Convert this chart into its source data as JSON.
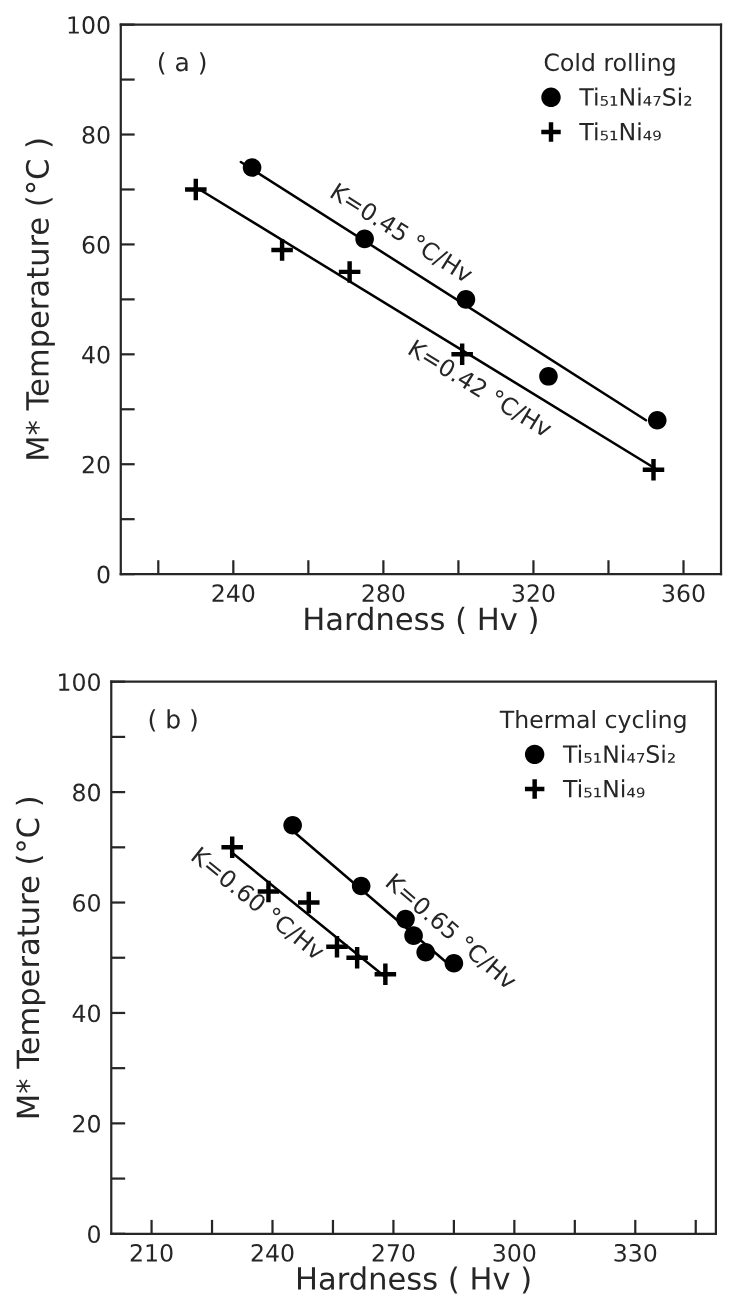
{
  "chart_data": [
    {
      "type": "scatter",
      "xlabel": "Hardness ( Hv )",
      "ylabel": "M* Temperature (°C )",
      "legend_title": "Cold rolling",
      "legend": "top right",
      "grid": false,
      "xlim": [
        210,
        370
      ],
      "ylim": [
        0,
        100
      ],
      "xticks": [
        {
          "value": 220,
          "label": null
        },
        240,
        {
          "value": 260,
          "label": null
        },
        280,
        {
          "value": 300,
          "label": null
        },
        320,
        {
          "value": 340,
          "label": null
        },
        360
      ],
      "yticks": [
        0,
        {
          "value": 10,
          "label": null
        },
        20,
        {
          "value": 30,
          "label": null
        },
        40,
        {
          "value": 50,
          "label": null
        },
        60,
        {
          "value": 70,
          "label": null
        },
        80,
        {
          "value": 90,
          "label": null
        },
        100
      ],
      "series": [
        {
          "name": "Ti₅₁Ni₄₇Si₂",
          "marker": "circle",
          "color": "#000000",
          "x": [
            245,
            275,
            302,
            324,
            353
          ],
          "values": [
            74,
            61,
            50,
            36,
            28
          ]
        },
        {
          "name": "Ti₅₁Ni₄₉",
          "marker": "cross",
          "color": "#000000",
          "x": [
            230,
            253,
            271,
            301,
            352
          ],
          "values": [
            70,
            59,
            55,
            40,
            19
          ]
        },
        {
          "type": "line",
          "line_style": "solid",
          "marker": "none",
          "color": "#000000",
          "x": [
            242,
            350
          ],
          "values": [
            75,
            28
          ]
        },
        {
          "type": "line",
          "line_style": "solid",
          "marker": "none",
          "color": "#000000",
          "x": [
            231,
            353
          ],
          "values": [
            70,
            19
          ]
        }
      ],
      "annotations": [
        "( a )",
        {
          "text": "K=0.45 °C/Hv",
          "x": 281,
          "y": 58
        },
        {
          "text": "K=0.42 °C/Hv",
          "x": 309,
          "y": 37.4
        }
      ]
    },
    {
      "type": "scatter",
      "xlabel": "Hardness ( Hv )",
      "ylabel": "M* Temperature (°C )",
      "legend_title": "Thermal cycling",
      "legend": "top right",
      "grid": false,
      "xlim": [
        200,
        350
      ],
      "ylim": [
        0,
        100
      ],
      "xticks": [
        210,
        {
          "value": 225,
          "label": null
        },
        240,
        {
          "value": 255,
          "label": null
        },
        270,
        {
          "value": 285,
          "label": null
        },
        300,
        {
          "value": 315,
          "label": null
        },
        330,
        {
          "value": 345,
          "label": null
        }
      ],
      "yticks": [
        0,
        {
          "value": 10,
          "label": null
        },
        20,
        {
          "value": 30,
          "label": null
        },
        40,
        {
          "value": 50,
          "label": null
        },
        60,
        {
          "value": 70,
          "label": null
        },
        80,
        {
          "value": 90,
          "label": null
        },
        100
      ],
      "series": [
        {
          "name": "Ti₅₁Ni₄₇Si₂",
          "marker": "circle",
          "color": "#000000",
          "x": [
            245,
            262,
            273,
            275,
            278,
            285
          ],
          "values": [
            74,
            63,
            57,
            54,
            51,
            49
          ]
        },
        {
          "name": "Ti₅₁Ni₄₉",
          "marker": "cross",
          "color": "#000000",
          "x": [
            230,
            239,
            249,
            256,
            261,
            268
          ],
          "values": [
            70,
            62,
            60,
            52,
            50,
            47
          ]
        },
        {
          "type": "line",
          "line_style": "solid",
          "marker": "none",
          "color": "#000000",
          "x": [
            245,
            285
          ],
          "values": [
            73,
            48
          ]
        },
        {
          "type": "line",
          "line_style": "solid",
          "marker": "none",
          "color": "#000000",
          "x": [
            230,
            268
          ],
          "values": [
            69,
            46.5
          ]
        }
      ],
      "annotations": [
        "( b )",
        {
          "text": "K=0.65 °C/Hv",
          "x": 280,
          "y": 51.1
        },
        {
          "text": "K=0.60 °C/Hv",
          "x": 240,
          "y": 63.1
        }
      ]
    }
  ]
}
